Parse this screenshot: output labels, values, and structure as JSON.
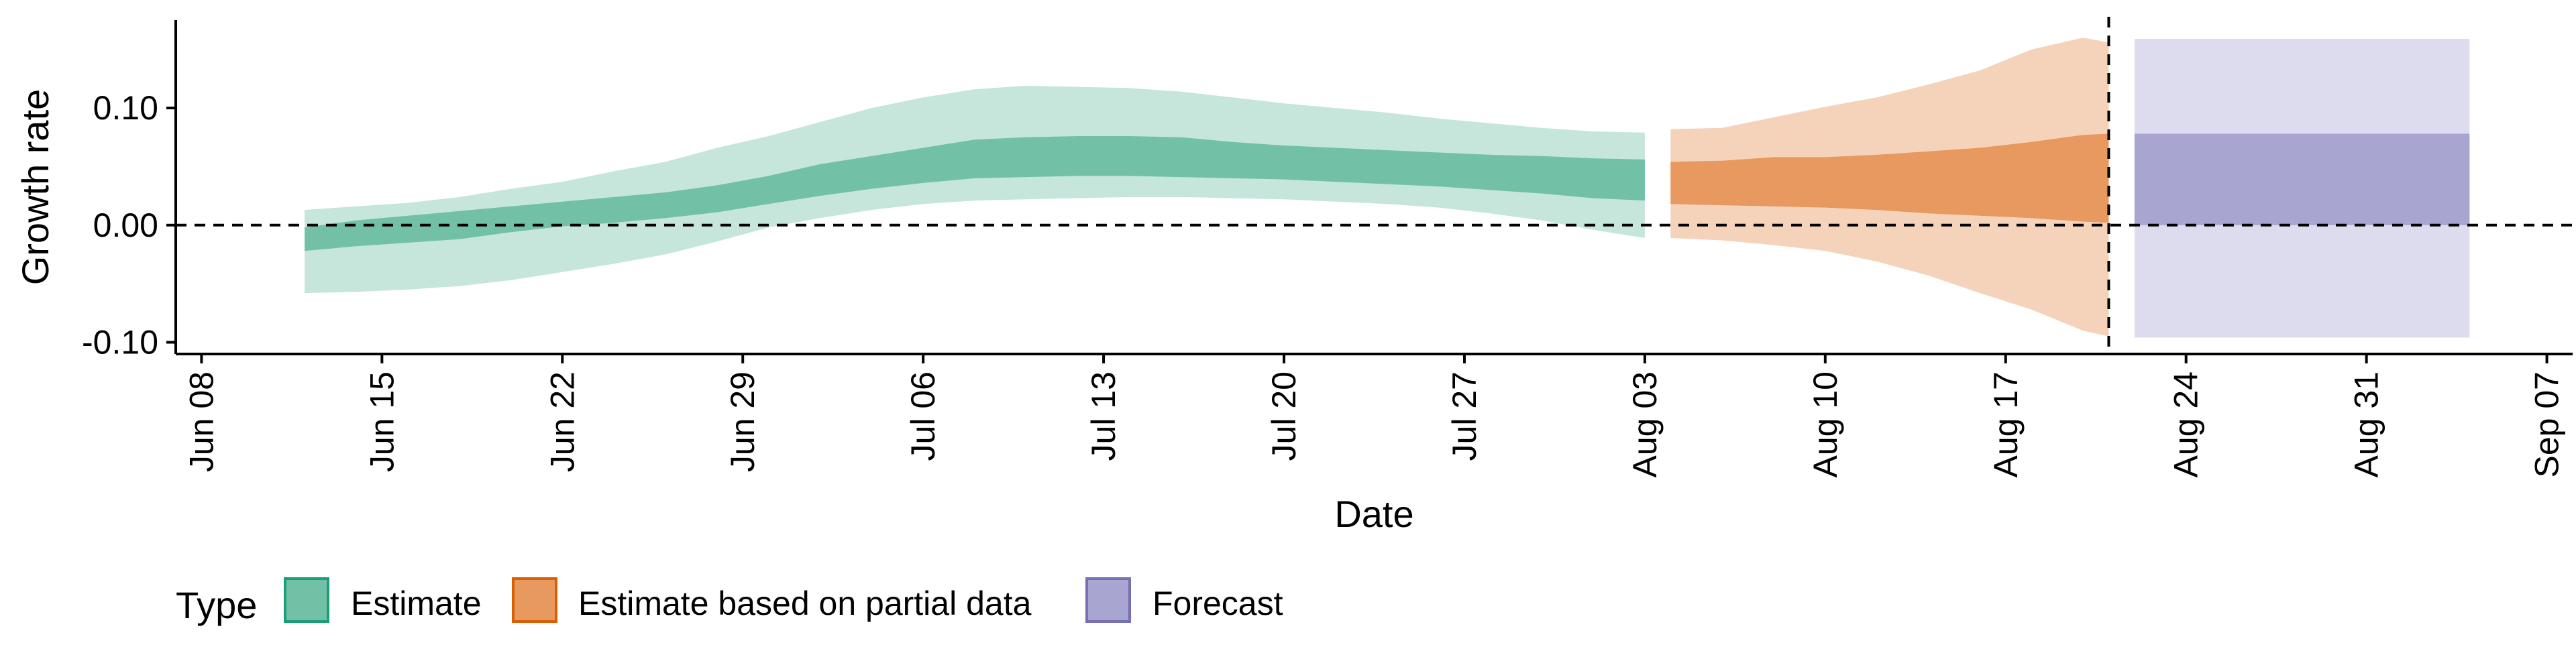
{
  "chart_data": {
    "type": "area",
    "title": "",
    "xlabel": "Date",
    "ylabel": "Growth rate",
    "x_range": [
      "2020-06-07",
      "2020-09-08"
    ],
    "y_range": [
      -0.11,
      0.175
    ],
    "y_ticks": [
      {
        "value": -0.1,
        "label": "-0.10"
      },
      {
        "value": 0.0,
        "label": "0.00"
      },
      {
        "value": 0.1,
        "label": "0.10"
      }
    ],
    "x_ticks": [
      {
        "date": "2020-06-08",
        "label": "Jun 08"
      },
      {
        "date": "2020-06-15",
        "label": "Jun 15"
      },
      {
        "date": "2020-06-22",
        "label": "Jun 22"
      },
      {
        "date": "2020-06-29",
        "label": "Jun 29"
      },
      {
        "date": "2020-07-06",
        "label": "Jul 06"
      },
      {
        "date": "2020-07-13",
        "label": "Jul 13"
      },
      {
        "date": "2020-07-20",
        "label": "Jul 20"
      },
      {
        "date": "2020-07-27",
        "label": "Jul 27"
      },
      {
        "date": "2020-08-03",
        "label": "Aug 03"
      },
      {
        "date": "2020-08-10",
        "label": "Aug 10"
      },
      {
        "date": "2020-08-17",
        "label": "Aug 17"
      },
      {
        "date": "2020-08-24",
        "label": "Aug 24"
      },
      {
        "date": "2020-08-31",
        "label": "Aug 31"
      },
      {
        "date": "2020-09-07",
        "label": "Sep 07"
      }
    ],
    "reference_lines": [
      {
        "orientation": "horizontal",
        "value": 0.0,
        "style": "dashed"
      },
      {
        "orientation": "vertical",
        "date": "2020-08-21",
        "style": "dashed"
      }
    ],
    "grid": false,
    "legend": {
      "title": "Type",
      "position": "bottom-left",
      "entries": [
        {
          "label": "Estimate",
          "fill": "#72c1a7",
          "border": "#1b9e77"
        },
        {
          "label": "Estimate based on partial data",
          "fill": "#e8995f",
          "border": "#d95f02"
        },
        {
          "label": "Forecast",
          "fill": "#a8a5d1",
          "border": "#7570b3"
        }
      ]
    },
    "series": [
      {
        "name": "Estimate",
        "color_dark": "#72c1a7",
        "color_light": "#c6e6db",
        "points": [
          {
            "date": "2020-06-12",
            "lo90": -0.058,
            "lo50": -0.022,
            "hi50": -0.002,
            "hi90": 0.013
          },
          {
            "date": "2020-06-14",
            "lo90": -0.057,
            "lo50": -0.018,
            "hi50": 0.004,
            "hi90": 0.016
          },
          {
            "date": "2020-06-16",
            "lo90": -0.055,
            "lo50": -0.015,
            "hi50": 0.008,
            "hi90": 0.019
          },
          {
            "date": "2020-06-18",
            "lo90": -0.052,
            "lo50": -0.012,
            "hi50": 0.012,
            "hi90": 0.024
          },
          {
            "date": "2020-06-20",
            "lo90": -0.047,
            "lo50": -0.006,
            "hi50": 0.016,
            "hi90": 0.031
          },
          {
            "date": "2020-06-22",
            "lo90": -0.04,
            "lo50": -0.001,
            "hi50": 0.02,
            "hi90": 0.037
          },
          {
            "date": "2020-06-24",
            "lo90": -0.033,
            "lo50": 0.002,
            "hi50": 0.024,
            "hi90": 0.046
          },
          {
            "date": "2020-06-26",
            "lo90": -0.025,
            "lo50": 0.006,
            "hi50": 0.028,
            "hi90": 0.054
          },
          {
            "date": "2020-06-28",
            "lo90": -0.014,
            "lo50": 0.011,
            "hi50": 0.034,
            "hi90": 0.066
          },
          {
            "date": "2020-06-30",
            "lo90": -0.002,
            "lo50": 0.018,
            "hi50": 0.042,
            "hi90": 0.076
          },
          {
            "date": "2020-07-02",
            "lo90": 0.006,
            "lo50": 0.025,
            "hi50": 0.052,
            "hi90": 0.088
          },
          {
            "date": "2020-07-04",
            "lo90": 0.013,
            "lo50": 0.031,
            "hi50": 0.059,
            "hi90": 0.1
          },
          {
            "date": "2020-07-06",
            "lo90": 0.018,
            "lo50": 0.036,
            "hi50": 0.066,
            "hi90": 0.109
          },
          {
            "date": "2020-07-08",
            "lo90": 0.021,
            "lo50": 0.04,
            "hi50": 0.073,
            "hi90": 0.116
          },
          {
            "date": "2020-07-10",
            "lo90": 0.022,
            "lo50": 0.041,
            "hi50": 0.075,
            "hi90": 0.119
          },
          {
            "date": "2020-07-12",
            "lo90": 0.023,
            "lo50": 0.042,
            "hi50": 0.076,
            "hi90": 0.118
          },
          {
            "date": "2020-07-14",
            "lo90": 0.024,
            "lo50": 0.042,
            "hi50": 0.076,
            "hi90": 0.117
          },
          {
            "date": "2020-07-16",
            "lo90": 0.024,
            "lo50": 0.041,
            "hi50": 0.075,
            "hi90": 0.114
          },
          {
            "date": "2020-07-18",
            "lo90": 0.023,
            "lo50": 0.04,
            "hi50": 0.071,
            "hi90": 0.109
          },
          {
            "date": "2020-07-20",
            "lo90": 0.022,
            "lo50": 0.039,
            "hi50": 0.068,
            "hi90": 0.104
          },
          {
            "date": "2020-07-22",
            "lo90": 0.02,
            "lo50": 0.037,
            "hi50": 0.066,
            "hi90": 0.1
          },
          {
            "date": "2020-07-24",
            "lo90": 0.018,
            "lo50": 0.035,
            "hi50": 0.064,
            "hi90": 0.096
          },
          {
            "date": "2020-07-26",
            "lo90": 0.015,
            "lo50": 0.033,
            "hi50": 0.062,
            "hi90": 0.091
          },
          {
            "date": "2020-07-28",
            "lo90": 0.01,
            "lo50": 0.03,
            "hi50": 0.06,
            "hi90": 0.087
          },
          {
            "date": "2020-07-30",
            "lo90": 0.004,
            "lo50": 0.027,
            "hi50": 0.059,
            "hi90": 0.083
          },
          {
            "date": "2020-08-01",
            "lo90": -0.004,
            "lo50": 0.023,
            "hi50": 0.057,
            "hi90": 0.08
          },
          {
            "date": "2020-08-03",
            "lo90": -0.011,
            "lo50": 0.021,
            "hi50": 0.056,
            "hi90": 0.079
          }
        ]
      },
      {
        "name": "Estimate based on partial data",
        "color_dark": "#e8995f",
        "color_light": "#f5d3ba",
        "points": [
          {
            "date": "2020-08-04",
            "lo90": -0.011,
            "lo50": 0.018,
            "hi50": 0.054,
            "hi90": 0.082
          },
          {
            "date": "2020-08-06",
            "lo90": -0.013,
            "lo50": 0.017,
            "hi50": 0.055,
            "hi90": 0.083
          },
          {
            "date": "2020-08-08",
            "lo90": -0.017,
            "lo50": 0.016,
            "hi50": 0.058,
            "hi90": 0.092
          },
          {
            "date": "2020-08-10",
            "lo90": -0.022,
            "lo50": 0.015,
            "hi50": 0.058,
            "hi90": 0.101
          },
          {
            "date": "2020-08-12",
            "lo90": -0.031,
            "lo50": 0.013,
            "hi50": 0.06,
            "hi90": 0.109
          },
          {
            "date": "2020-08-14",
            "lo90": -0.043,
            "lo50": 0.01,
            "hi50": 0.063,
            "hi90": 0.12
          },
          {
            "date": "2020-08-16",
            "lo90": -0.058,
            "lo50": 0.008,
            "hi50": 0.066,
            "hi90": 0.132
          },
          {
            "date": "2020-08-18",
            "lo90": -0.072,
            "lo50": 0.006,
            "hi50": 0.071,
            "hi90": 0.15
          },
          {
            "date": "2020-08-20",
            "lo90": -0.09,
            "lo50": 0.003,
            "hi50": 0.077,
            "hi90": 0.16
          },
          {
            "date": "2020-08-21",
            "lo90": -0.095,
            "lo50": 0.002,
            "hi50": 0.078,
            "hi90": 0.156
          }
        ]
      },
      {
        "name": "Forecast",
        "color_dark": "#a8a5d1",
        "color_light": "#dddcee",
        "points": [
          {
            "date": "2020-08-22",
            "lo90": -0.096,
            "lo50": 0.0,
            "hi50": 0.078,
            "hi90": 0.159
          },
          {
            "date": "2020-09-04",
            "lo90": -0.096,
            "lo50": 0.0,
            "hi50": 0.078,
            "hi90": 0.159
          }
        ]
      }
    ]
  }
}
